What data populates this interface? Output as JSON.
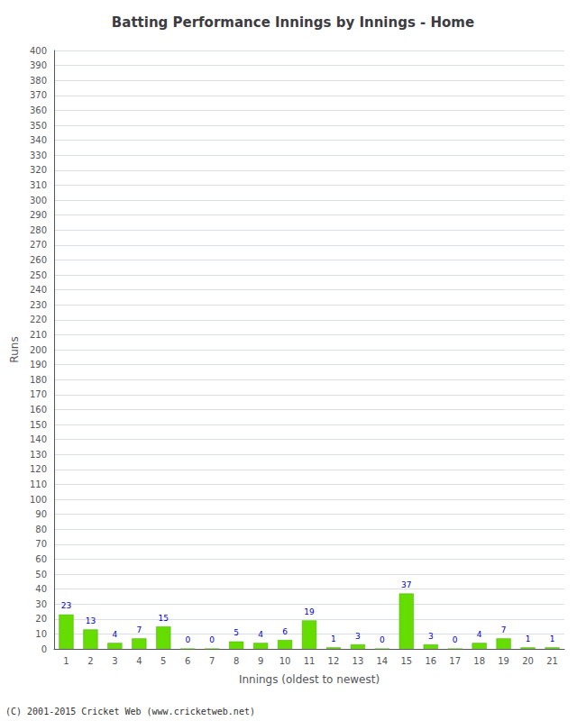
{
  "chart_data": {
    "type": "bar",
    "title": "Batting Performance Innings by Innings - Home",
    "x_label": "Innings (oldest to newest)",
    "y_label": "Runs",
    "categories": [
      "1",
      "2",
      "3",
      "4",
      "5",
      "6",
      "7",
      "8",
      "9",
      "10",
      "11",
      "12",
      "13",
      "14",
      "15",
      "16",
      "17",
      "18",
      "19",
      "20",
      "21"
    ],
    "values": [
      23,
      13,
      4,
      7,
      15,
      0,
      0,
      5,
      4,
      6,
      19,
      1,
      3,
      0,
      37,
      3,
      0,
      4,
      7,
      1,
      1
    ],
    "color": "#66dd00",
    "ylim": [
      0,
      400
    ],
    "yticks": [
      0,
      10,
      20,
      30,
      40,
      50,
      60,
      70,
      80,
      90,
      100,
      110,
      120,
      130,
      140,
      150,
      160,
      170,
      180,
      190,
      200,
      210,
      220,
      230,
      240,
      250,
      260,
      270,
      280,
      290,
      300,
      310,
      320,
      330,
      340,
      350,
      360,
      370,
      380,
      390,
      400
    ],
    "grid": true,
    "data_labels": true,
    "annotations": [
      "(C) 2001-2015 Cricket Web (www.cricketweb.net)"
    ]
  }
}
